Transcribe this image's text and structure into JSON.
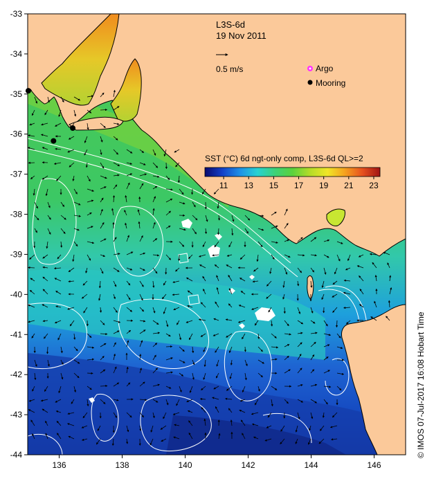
{
  "map": {
    "title_line1": "L3S-6d",
    "title_line2": "19 Nov 2011",
    "vector_scale_label": "0.5 m/s",
    "legend_argo": "Argo",
    "legend_mooring": "Mooring",
    "credit": "© IMOS 07-Jul-2017 16:08 Hobart Time",
    "colors": {
      "land": "#fbc99a",
      "coast": "#000000",
      "contour": "#ffffff",
      "argo": "#ff33ff"
    },
    "icons": [
      "current-arrow-icon",
      "argo-float-icon",
      "mooring-icon"
    ]
  },
  "colorbar": {
    "title": "SST (°C) 6d ngt-only comp, L3S-6d QL>=2",
    "range": [
      9.5,
      23.5
    ],
    "tick_values": [
      11,
      13,
      15,
      17,
      19,
      21,
      23
    ],
    "tick_labels": [
      "11",
      "13",
      "15",
      "17",
      "19",
      "21",
      "23"
    ],
    "stops": [
      "#0a0a6e",
      "#1440c8",
      "#1e90e6",
      "#28d2d2",
      "#3cd278",
      "#5ad23c",
      "#b4dc28",
      "#f0e628",
      "#f5a01e",
      "#e6501e",
      "#a01414"
    ]
  },
  "axes": {
    "lon_range": [
      135,
      147
    ],
    "lat_range": [
      -44,
      -33
    ],
    "lon_ticks": [
      136,
      138,
      140,
      142,
      144,
      146
    ],
    "lon_labels": [
      "136",
      "138",
      "140",
      "142",
      "144",
      "146"
    ],
    "lat_ticks": [
      -33,
      -34,
      -35,
      -36,
      -37,
      -38,
      -39,
      -40,
      -41,
      -42,
      -43,
      -44
    ],
    "lat_labels": [
      "-33",
      "-34",
      "-35",
      "-36",
      "-37",
      "-38",
      "-39",
      "-40",
      "-41",
      "-42",
      "-43",
      "-44"
    ]
  },
  "moorings": [
    {
      "lon": 135.02,
      "lat": -34.92
    },
    {
      "lon": 136.43,
      "lat": -35.85
    },
    {
      "lon": 135.82,
      "lat": -36.17
    }
  ]
}
